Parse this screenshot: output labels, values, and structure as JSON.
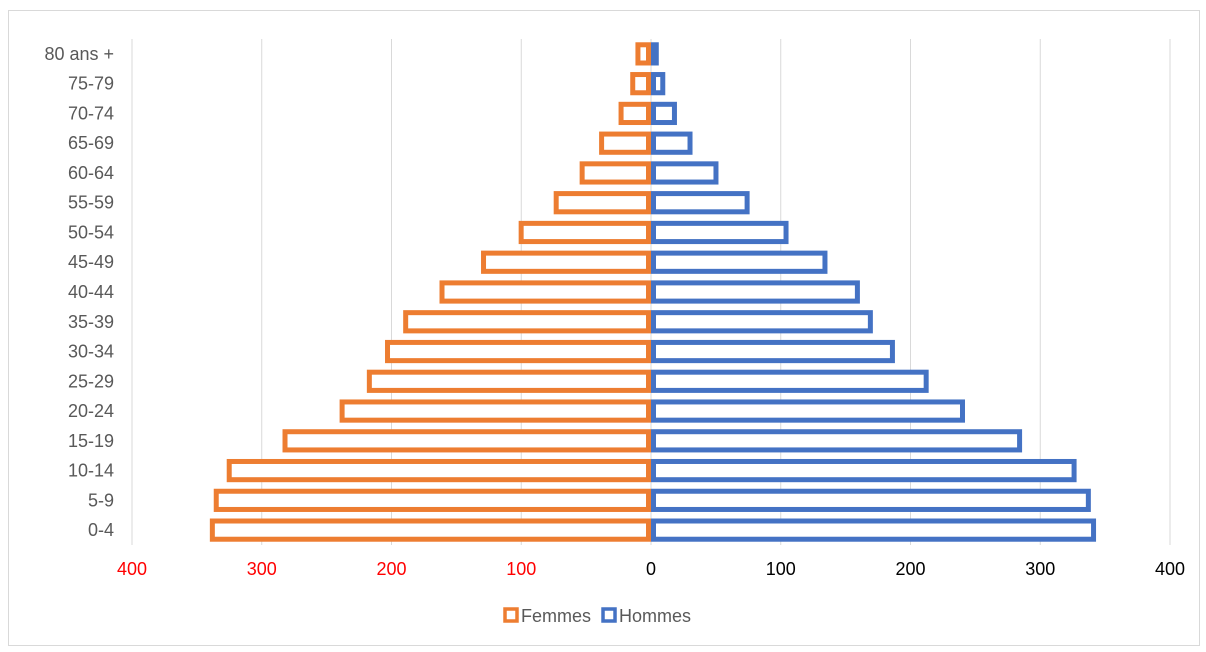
{
  "chart_data": {
    "type": "bar",
    "orientation": "horizontal",
    "categories": [
      "0-4",
      "5-9",
      "10-14",
      "15-19",
      "20-24",
      "25-29",
      "30-34",
      "35-39",
      "40-44",
      "45-49",
      "50-54",
      "55-59",
      "60-64",
      "65-69",
      "70-74",
      "75-79",
      "80 ans +"
    ],
    "series": [
      {
        "name": "Femmes",
        "color": "#ED7D31",
        "side": "left",
        "values": [
          340,
          337,
          327,
          284,
          240,
          219,
          205,
          191,
          163,
          131,
          102,
          75,
          55,
          40,
          25,
          16,
          12
        ]
      },
      {
        "name": "Hommes",
        "color": "#4472C4",
        "side": "right",
        "values": [
          343,
          339,
          328,
          286,
          242,
          214,
          188,
          171,
          161,
          136,
          106,
          76,
          52,
          32,
          20,
          11,
          6
        ]
      }
    ],
    "xlim": [
      -400,
      400
    ],
    "x_ticks": [
      {
        "value": -400,
        "label": "400",
        "color": "#FF0000"
      },
      {
        "value": -300,
        "label": "300",
        "color": "#FF0000"
      },
      {
        "value": -200,
        "label": "200",
        "color": "#FF0000"
      },
      {
        "value": -100,
        "label": "100",
        "color": "#FF0000"
      },
      {
        "value": 0,
        "label": "0",
        "color": "#000000"
      },
      {
        "value": 100,
        "label": "100",
        "color": "#000000"
      },
      {
        "value": 200,
        "label": "200",
        "color": "#000000"
      },
      {
        "value": 300,
        "label": "300",
        "color": "#000000"
      },
      {
        "value": 400,
        "label": "400",
        "color": "#000000"
      }
    ],
    "grid": true,
    "legend_position": "bottom",
    "bar_style": "outline"
  }
}
